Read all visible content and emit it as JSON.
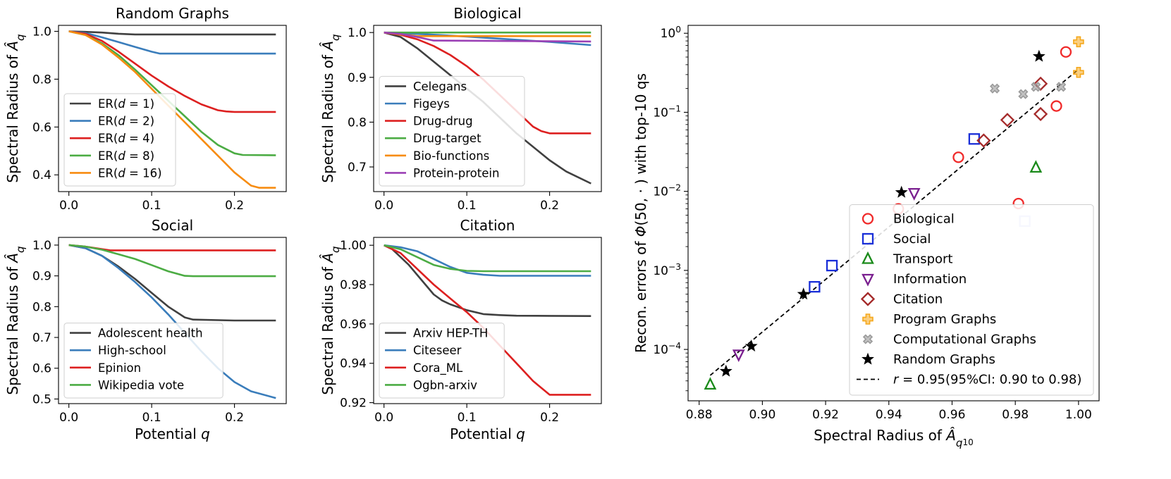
{
  "chart_data": [
    {
      "id": "random",
      "type": "line",
      "title": "Random Graphs",
      "ylabel": "Spectral Radius of",
      "ylabel_symbol": "Â",
      "ylabel_sub": "q",
      "xlabel": "",
      "xlim": [
        -0.0125,
        0.2625
      ],
      "ylim": [
        0.33,
        1.025
      ],
      "xticks": [
        0.0,
        0.1,
        0.2
      ],
      "xtick_labels": [
        "0.0",
        "0.1",
        "0.2"
      ],
      "yticks": [
        0.4,
        0.6,
        0.8,
        1.0
      ],
      "ytick_labels": [
        "0.4",
        "0.6",
        "0.8",
        "1.0"
      ],
      "legend_position": "lower-left",
      "series": [
        {
          "name": "ER(d=1)",
          "legend_pre": "ER(",
          "legend_var": "d",
          "legend_post": " = 1)",
          "color": "#404040",
          "x": [
            0,
            0.02,
            0.04,
            0.06,
            0.08,
            0.1,
            0.15,
            0.2,
            0.25
          ],
          "y": [
            1.0,
            0.998,
            0.995,
            0.99,
            0.987,
            0.987,
            0.987,
            0.987,
            0.987
          ]
        },
        {
          "name": "ER(d=2)",
          "legend_pre": "ER(",
          "legend_var": "d",
          "legend_post": " = 2)",
          "color": "#3a7dbb",
          "x": [
            0,
            0.02,
            0.04,
            0.06,
            0.08,
            0.1,
            0.11,
            0.15,
            0.2,
            0.25
          ],
          "y": [
            1.0,
            0.993,
            0.975,
            0.955,
            0.935,
            0.915,
            0.907,
            0.907,
            0.907,
            0.907
          ]
        },
        {
          "name": "ER(d=4)",
          "legend_pre": "ER(",
          "legend_var": "d",
          "legend_post": " = 4)",
          "color": "#dd2020",
          "x": [
            0,
            0.02,
            0.04,
            0.06,
            0.08,
            0.1,
            0.12,
            0.14,
            0.16,
            0.18,
            0.19,
            0.2,
            0.25
          ],
          "y": [
            1.0,
            0.99,
            0.96,
            0.915,
            0.865,
            0.815,
            0.77,
            0.73,
            0.695,
            0.67,
            0.665,
            0.663,
            0.663
          ]
        },
        {
          "name": "ER(d=8)",
          "legend_pre": "ER(",
          "legend_var": "d",
          "legend_post": " = 8)",
          "color": "#4cac44",
          "x": [
            0,
            0.02,
            0.04,
            0.06,
            0.08,
            0.1,
            0.12,
            0.14,
            0.16,
            0.18,
            0.2,
            0.21,
            0.25
          ],
          "y": [
            1.0,
            0.985,
            0.95,
            0.9,
            0.84,
            0.775,
            0.71,
            0.645,
            0.58,
            0.525,
            0.49,
            0.483,
            0.482
          ]
        },
        {
          "name": "ER(d=16)",
          "legend_pre": "ER(",
          "legend_var": "d",
          "legend_post": " = 16)",
          "color": "#f78c10",
          "x": [
            0,
            0.02,
            0.04,
            0.06,
            0.08,
            0.1,
            0.12,
            0.14,
            0.16,
            0.18,
            0.2,
            0.22,
            0.23,
            0.25
          ],
          "y": [
            1.0,
            0.985,
            0.945,
            0.89,
            0.83,
            0.76,
            0.69,
            0.62,
            0.55,
            0.48,
            0.41,
            0.355,
            0.346,
            0.346
          ]
        }
      ]
    },
    {
      "id": "bio",
      "type": "line",
      "title": "Biological",
      "ylabel": "Spectral Radius of",
      "ylabel_symbol": "Â",
      "ylabel_sub": "q",
      "xlabel": "",
      "xlim": [
        -0.0125,
        0.2625
      ],
      "ylim": [
        0.645,
        1.016
      ],
      "xticks": [
        0.0,
        0.1,
        0.2
      ],
      "xtick_labels": [
        "0.0",
        "0.1",
        "0.2"
      ],
      "yticks": [
        0.7,
        0.8,
        0.9,
        1.0
      ],
      "ytick_labels": [
        "0.7",
        "0.8",
        "0.9",
        "1.0"
      ],
      "legend_position": "lower-left",
      "series": [
        {
          "name": "Celegans",
          "color": "#404040",
          "x": [
            0,
            0.02,
            0.04,
            0.06,
            0.08,
            0.1,
            0.12,
            0.14,
            0.16,
            0.18,
            0.2,
            0.22,
            0.25
          ],
          "y": [
            1.0,
            0.99,
            0.965,
            0.935,
            0.905,
            0.875,
            0.845,
            0.81,
            0.775,
            0.745,
            0.715,
            0.69,
            0.663
          ]
        },
        {
          "name": "Figeys",
          "color": "#3a7dbb",
          "x": [
            0,
            0.05,
            0.1,
            0.15,
            0.2,
            0.25
          ],
          "y": [
            1.0,
            0.996,
            0.991,
            0.985,
            0.979,
            0.972
          ]
        },
        {
          "name": "Drug-drug",
          "color": "#dd2020",
          "x": [
            0,
            0.02,
            0.04,
            0.06,
            0.08,
            0.1,
            0.12,
            0.14,
            0.16,
            0.18,
            0.19,
            0.2,
            0.25
          ],
          "y": [
            1.0,
            0.995,
            0.985,
            0.97,
            0.95,
            0.925,
            0.895,
            0.86,
            0.825,
            0.79,
            0.78,
            0.775,
            0.775
          ]
        },
        {
          "name": "Drug-target",
          "color": "#4cac44",
          "x": [
            0,
            0.25
          ],
          "y": [
            1.0,
            1.0
          ]
        },
        {
          "name": "Bio-functions",
          "color": "#f78c10",
          "x": [
            0,
            0.02,
            0.04,
            0.25
          ],
          "y": [
            1.0,
            0.996,
            0.992,
            0.992
          ]
        },
        {
          "name": "Protein-protein",
          "color": "#9b40b5",
          "x": [
            0,
            0.02,
            0.04,
            0.06,
            0.25
          ],
          "y": [
            1.0,
            0.997,
            0.99,
            0.982,
            0.98
          ]
        }
      ]
    },
    {
      "id": "social",
      "type": "line",
      "title": "Social",
      "ylabel": "Spectral Radius of",
      "ylabel_symbol": "Â",
      "ylabel_sub": "q",
      "xlabel": "Potential",
      "xlabel_var": "q",
      "xlim": [
        -0.0125,
        0.2625
      ],
      "ylim": [
        0.485,
        1.025
      ],
      "xticks": [
        0.0,
        0.1,
        0.2
      ],
      "xtick_labels": [
        "0.0",
        "0.1",
        "0.2"
      ],
      "yticks": [
        0.5,
        0.6,
        0.7,
        0.8,
        0.9,
        1.0
      ],
      "ytick_labels": [
        "0.5",
        "0.6",
        "0.7",
        "0.8",
        "0.9",
        "1.0"
      ],
      "legend_position": "lower-left",
      "series": [
        {
          "name": "Adolescent health",
          "color": "#404040",
          "x": [
            0,
            0.02,
            0.04,
            0.06,
            0.08,
            0.1,
            0.12,
            0.14,
            0.15,
            0.2,
            0.25
          ],
          "y": [
            1.0,
            0.99,
            0.965,
            0.93,
            0.89,
            0.845,
            0.8,
            0.765,
            0.758,
            0.755,
            0.755
          ]
        },
        {
          "name": "High-school",
          "color": "#3a7dbb",
          "x": [
            0,
            0.02,
            0.04,
            0.06,
            0.08,
            0.1,
            0.12,
            0.14,
            0.16,
            0.18,
            0.2,
            0.22,
            0.25
          ],
          "y": [
            1.0,
            0.99,
            0.965,
            0.925,
            0.88,
            0.83,
            0.775,
            0.715,
            0.655,
            0.6,
            0.555,
            0.525,
            0.503
          ]
        },
        {
          "name": "Epinion",
          "color": "#dd2020",
          "x": [
            0,
            0.02,
            0.04,
            0.05,
            0.25
          ],
          "y": [
            1.0,
            0.995,
            0.987,
            0.983,
            0.983
          ]
        },
        {
          "name": "Wikipedia vote",
          "color": "#4cac44",
          "x": [
            0,
            0.02,
            0.04,
            0.06,
            0.08,
            0.1,
            0.12,
            0.14,
            0.15,
            0.25
          ],
          "y": [
            1.0,
            0.995,
            0.985,
            0.97,
            0.955,
            0.935,
            0.915,
            0.9,
            0.899,
            0.899
          ]
        }
      ]
    },
    {
      "id": "citation",
      "type": "line",
      "title": "Citation",
      "ylabel": "Spectral Radius of",
      "ylabel_symbol": "Â",
      "ylabel_sub": "q",
      "xlabel": "Potential",
      "xlabel_var": "q",
      "xlim": [
        -0.0125,
        0.2625
      ],
      "ylim": [
        0.9195,
        1.004
      ],
      "xticks": [
        0.0,
        0.1,
        0.2
      ],
      "xtick_labels": [
        "0.0",
        "0.1",
        "0.2"
      ],
      "yticks": [
        0.92,
        0.94,
        0.96,
        0.98,
        1.0
      ],
      "ytick_labels": [
        "0.92",
        "0.94",
        "0.96",
        "0.98",
        "1.00"
      ],
      "legend_position": "lower-left",
      "series": [
        {
          "name": "Arxiv HEP-TH",
          "color": "#404040",
          "x": [
            0,
            0.01,
            0.02,
            0.03,
            0.04,
            0.05,
            0.06,
            0.07,
            0.08,
            0.1,
            0.12,
            0.14,
            0.16,
            0.2,
            0.25
          ],
          "y": [
            1.0,
            0.998,
            0.994,
            0.99,
            0.985,
            0.98,
            0.975,
            0.972,
            0.97,
            0.967,
            0.965,
            0.9645,
            0.9642,
            0.9641,
            0.964
          ]
        },
        {
          "name": "Citeseer",
          "color": "#3a7dbb",
          "x": [
            0,
            0.02,
            0.04,
            0.06,
            0.08,
            0.1,
            0.12,
            0.14,
            0.25
          ],
          "y": [
            1.0,
            0.999,
            0.997,
            0.993,
            0.989,
            0.986,
            0.985,
            0.9845,
            0.9845
          ]
        },
        {
          "name": "Cora_ML",
          "color": "#dd2020",
          "x": [
            0,
            0.02,
            0.04,
            0.06,
            0.08,
            0.1,
            0.12,
            0.14,
            0.16,
            0.18,
            0.2,
            0.205,
            0.25
          ],
          "y": [
            1.0,
            0.996,
            0.988,
            0.98,
            0.973,
            0.966,
            0.958,
            0.949,
            0.94,
            0.931,
            0.924,
            0.924,
            0.924
          ]
        },
        {
          "name": "Ogbn-arxiv",
          "color": "#4cac44",
          "x": [
            0,
            0.02,
            0.04,
            0.06,
            0.08,
            0.1,
            0.12,
            0.25
          ],
          "y": [
            1.0,
            0.998,
            0.994,
            0.99,
            0.988,
            0.987,
            0.9868,
            0.9868
          ]
        }
      ]
    },
    {
      "id": "scatter",
      "type": "scatter",
      "title": "",
      "xlabel": "Spectral Radius of",
      "xlabel_symbol": "Â",
      "xlabel_sub": "q",
      "xlabel_subsub": "10",
      "ylabel_pre": "Recon. errors of",
      "ylabel_symbol": "Φ",
      "ylabel_post": "(50, · ) with top-10 qs",
      "yscale": "log",
      "xlim": [
        0.8765,
        1.0065
      ],
      "ylim_exp": [
        -4.65,
        0.1
      ],
      "xticks": [
        0.88,
        0.9,
        0.92,
        0.94,
        0.96,
        0.98,
        1.0
      ],
      "xtick_labels": [
        "0.88",
        "0.90",
        "0.92",
        "0.94",
        "0.96",
        "0.98",
        "1.00"
      ],
      "ytick_exps": [
        -4,
        -3,
        -2,
        -1,
        0
      ],
      "ytick_base": "10",
      "ytick_powers": [
        "−4",
        "−3",
        "−2",
        "−1",
        "0"
      ],
      "legend_position": "lower-right",
      "categories": [
        {
          "name": "Biological",
          "marker": "circle",
          "color": "#f02a2a",
          "points": [
            [
              0.943,
              0.006
            ],
            [
              0.962,
              0.027
            ],
            [
              0.981,
              0.007
            ],
            [
              0.993,
              0.12
            ],
            [
              0.996,
              0.58
            ]
          ]
        },
        {
          "name": "Social",
          "marker": "square",
          "color": "#1a2fd8",
          "points": [
            [
              0.9165,
              0.00062
            ],
            [
              0.922,
              0.00115
            ],
            [
              0.967,
              0.046
            ],
            [
              0.983,
              0.0042,
              "faint"
            ]
          ]
        },
        {
          "name": "Transport",
          "marker": "triangle-up",
          "color": "#1a8a1a",
          "points": [
            [
              0.8835,
              3.6e-05
            ],
            [
              0.9865,
              0.02
            ]
          ]
        },
        {
          "name": "Information",
          "marker": "triangle-down",
          "color": "#7a1f8f",
          "points": [
            [
              0.8925,
              8.6e-05
            ],
            [
              0.948,
              0.0095
            ]
          ]
        },
        {
          "name": "Citation",
          "marker": "diamond",
          "color": "#a52a2a",
          "points": [
            [
              0.97,
              0.044
            ],
            [
              0.9775,
              0.08
            ],
            [
              0.988,
              0.095
            ],
            [
              0.988,
              0.23
            ]
          ]
        },
        {
          "name": "Program Graphs",
          "marker": "plus",
          "color": "#f5a81c",
          "points": [
            [
              1.0,
              0.32
            ],
            [
              1.0,
              0.78
            ]
          ]
        },
        {
          "name": "Computational Graphs",
          "marker": "x",
          "color": "#9a9a9a",
          "points": [
            [
              0.9735,
              0.2
            ],
            [
              0.9825,
              0.17
            ],
            [
              0.9865,
              0.21
            ],
            [
              0.9945,
              0.21
            ]
          ]
        },
        {
          "name": "Random Graphs",
          "marker": "star",
          "color": "#000000",
          "points": [
            [
              0.8885,
              5.3e-05
            ],
            [
              0.8965,
              0.00011
            ],
            [
              0.913,
              0.0005
            ],
            [
              0.944,
              0.0097
            ],
            [
              0.9875,
              0.51
            ]
          ]
        }
      ],
      "fit_line": {
        "style": "dashed",
        "x": [
          0.8835,
          1.0
        ],
        "y": [
          4.7e-05,
          0.35
        ],
        "label_var": "r",
        "label_value": " = 0.95",
        "label_ci": "(95%CI: 0.90 to 0.98)"
      }
    }
  ]
}
